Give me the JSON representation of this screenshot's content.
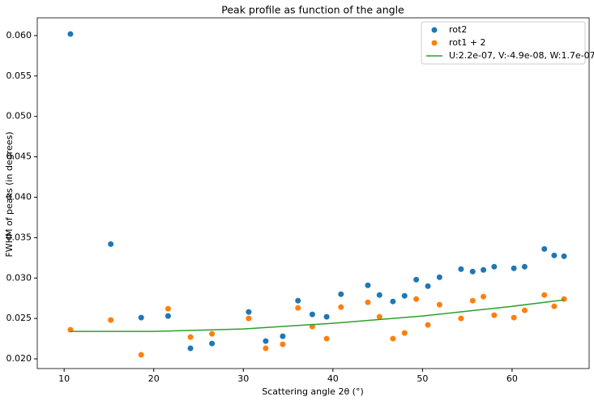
{
  "chart_data": {
    "type": "scatter",
    "title": "Peak profile as function of the angle",
    "x_label": "Scattering angle 2θ (°)",
    "y_label": "FWHM of peaks (in degrees)",
    "xlim": [
      7.0,
      68.6
    ],
    "ylim": [
      0.0188,
      0.0622
    ],
    "xticks": [
      10,
      20,
      30,
      40,
      50,
      60
    ],
    "yticks": [
      {
        "value": 0.02,
        "label": "0.020"
      },
      0.025,
      {
        "value": 0.03,
        "label": "0.030"
      },
      0.035,
      {
        "value": 0.04,
        "label": "0.040"
      },
      0.045,
      {
        "value": 0.05,
        "label": "0.050"
      },
      0.055,
      {
        "value": 0.06,
        "label": "0.060"
      }
    ],
    "legend": "upper right",
    "series": [
      {
        "name": "rot2",
        "color": "#1f77b4",
        "style": "scatter",
        "x": [
          10.7,
          15.2,
          18.6,
          21.6,
          24.1,
          26.5,
          30.6,
          32.5,
          34.4,
          36.1,
          37.7,
          39.3,
          40.9,
          43.9,
          45.2,
          46.7,
          48.0,
          49.3,
          50.6,
          51.9,
          54.3,
          55.6,
          56.8,
          58.0,
          60.2,
          61.4,
          63.6,
          64.7,
          65.8
        ],
        "values": [
          0.0602,
          0.0342,
          0.0251,
          0.0253,
          0.0213,
          0.0219,
          0.0258,
          0.0222,
          0.0228,
          0.0272,
          0.0255,
          0.0252,
          0.028,
          0.0291,
          0.0279,
          0.0271,
          0.0278,
          0.0298,
          0.029,
          0.0301,
          0.0311,
          0.0308,
          0.031,
          0.0314,
          0.0312,
          0.0314,
          0.0336,
          0.0328,
          0.0327
        ]
      },
      {
        "name": "rot1 + 2",
        "color": "#ff7f0e",
        "style": "scatter",
        "x": [
          10.7,
          15.2,
          18.6,
          21.6,
          24.1,
          26.5,
          30.6,
          32.5,
          34.4,
          36.1,
          37.7,
          39.3,
          40.9,
          43.9,
          45.2,
          46.7,
          48.0,
          49.3,
          50.6,
          51.9,
          54.3,
          55.6,
          56.8,
          58.0,
          60.2,
          61.4,
          63.6,
          64.7,
          65.8
        ],
        "values": [
          0.0236,
          0.0248,
          0.0205,
          0.0262,
          0.0227,
          0.0231,
          0.025,
          0.0213,
          0.0218,
          0.0263,
          0.024,
          0.0225,
          0.0264,
          0.027,
          0.0252,
          0.0225,
          0.0232,
          0.0274,
          0.0242,
          0.0267,
          0.025,
          0.0272,
          0.0277,
          0.0254,
          0.0251,
          0.026,
          0.0279,
          0.0265,
          0.0274
        ]
      },
      {
        "name": "U:2.2e-07, V:-4.9e-08, W:1.7e-07",
        "color": "#2ca02c",
        "style": "line",
        "x": [
          10.7,
          20,
          30,
          40,
          50,
          60,
          65.8
        ],
        "values": [
          0.0234,
          0.0234,
          0.0237,
          0.0244,
          0.0253,
          0.0265,
          0.0273
        ]
      }
    ]
  }
}
